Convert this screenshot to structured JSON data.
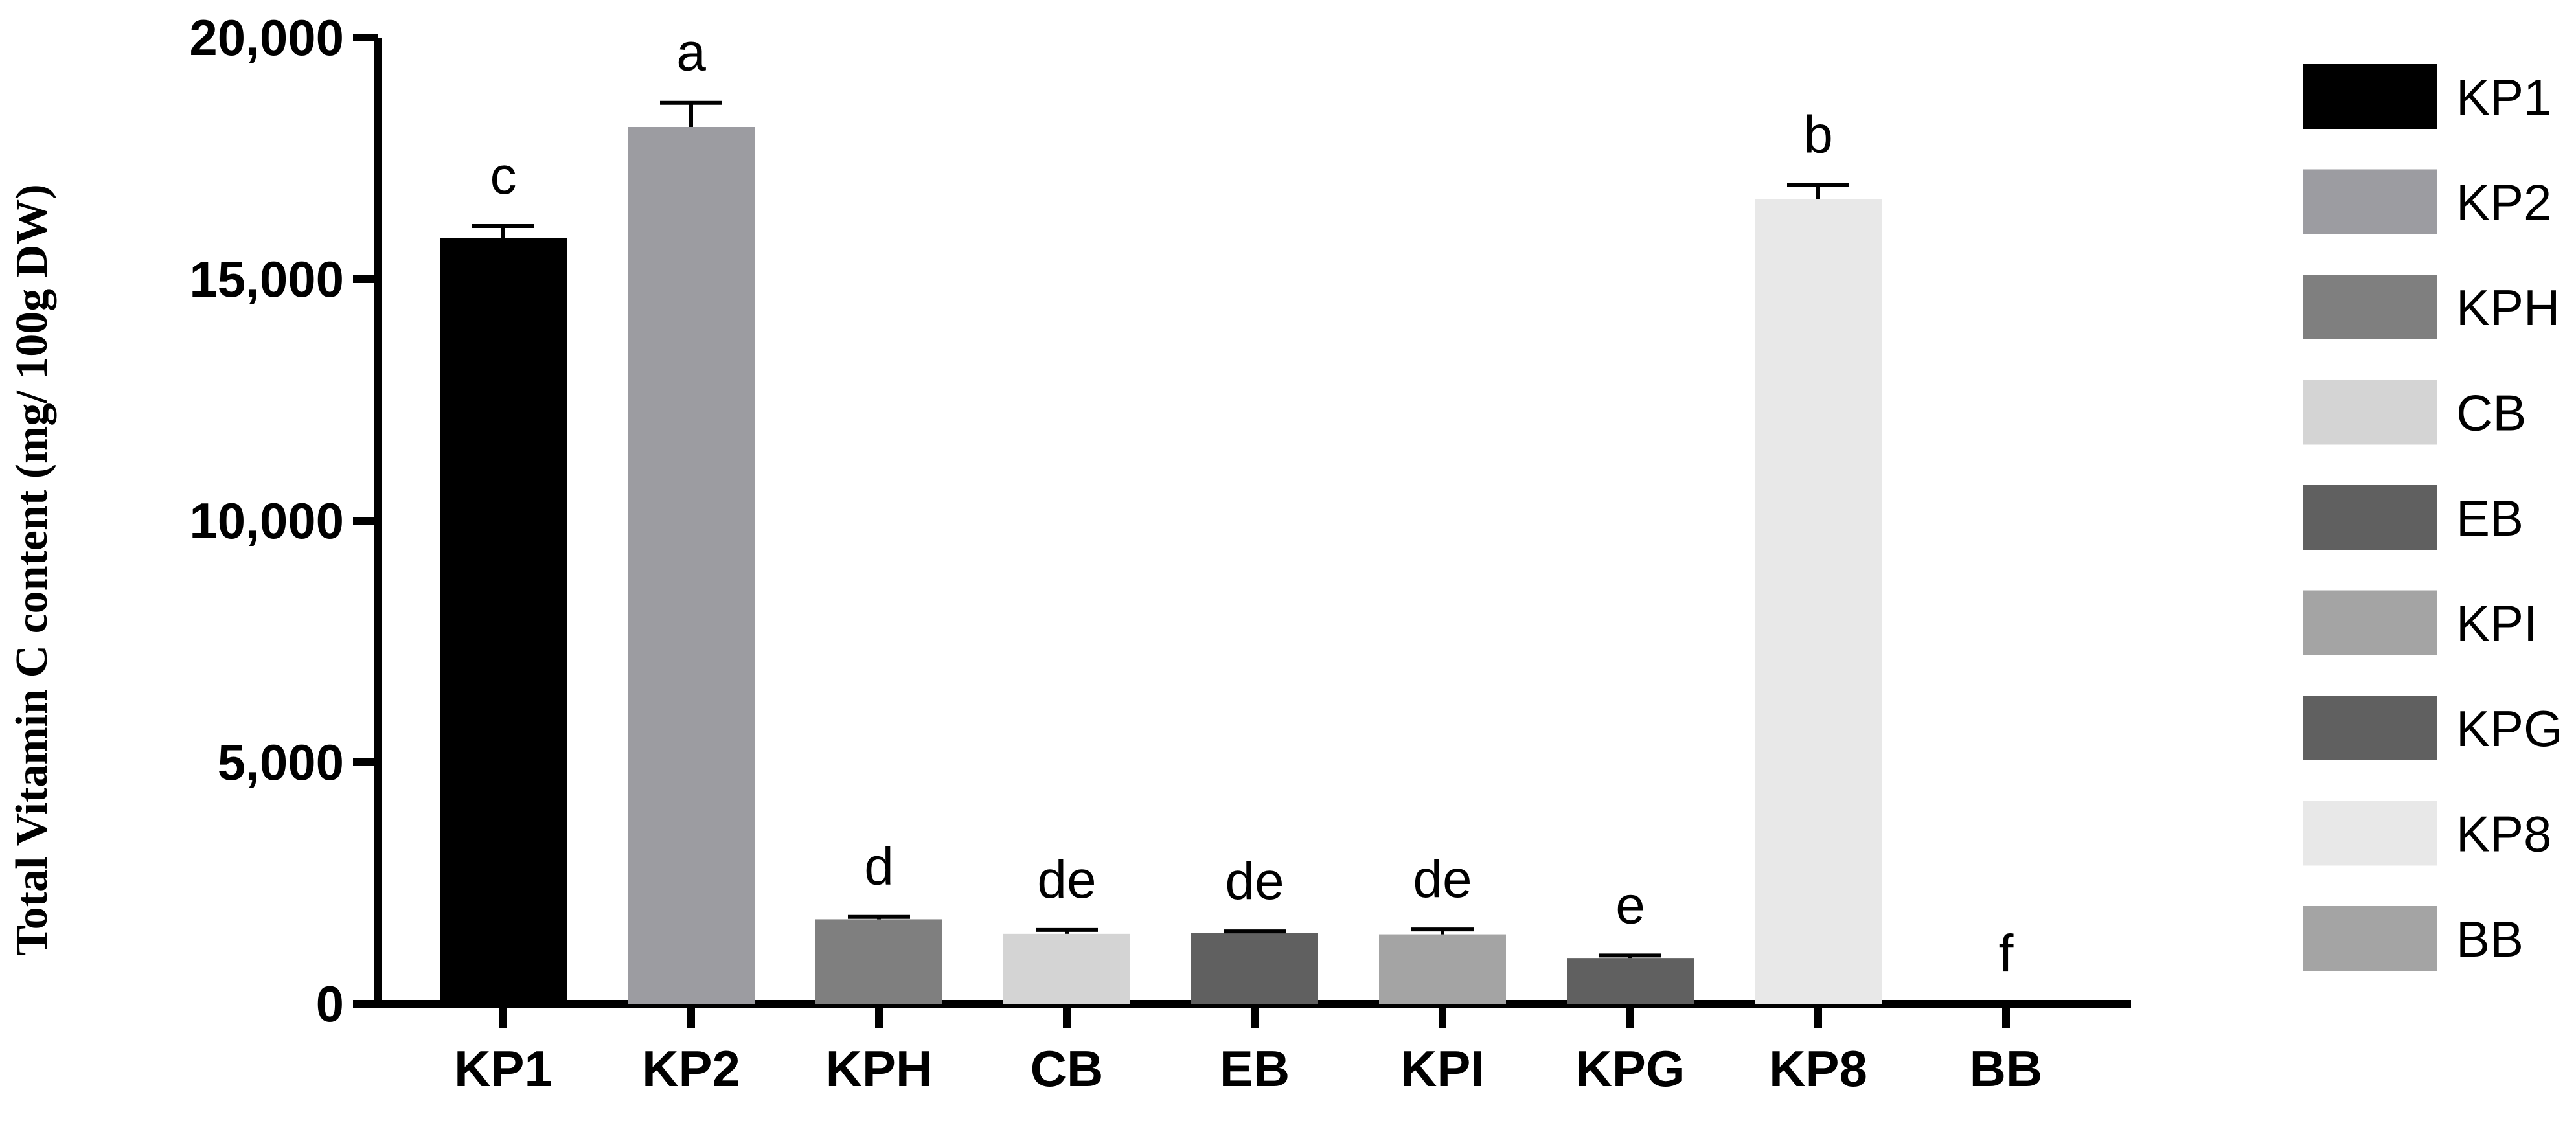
{
  "chart_data": {
    "type": "bar",
    "title": "",
    "xlabel": "",
    "ylabel": "Total Vitamin C content (mg/ 100g DW)",
    "ylim": [
      0,
      20000
    ],
    "yticks": [
      0,
      5000,
      10000,
      15000,
      20000
    ],
    "ytick_labels": [
      "0",
      "5,000",
      "10,000",
      "15,000",
      "20,000"
    ],
    "grid": false,
    "legend_position": "right",
    "categories": [
      "KP1",
      "KP2",
      "KPH",
      "CB",
      "EB",
      "KPI",
      "KPG",
      "KP8",
      "BB"
    ],
    "values": [
      15850,
      18150,
      1750,
      1450,
      1470,
      1440,
      950,
      16650,
      0
    ],
    "errors": [
      250,
      500,
      50,
      80,
      30,
      100,
      50,
      300,
      0
    ],
    "significance": [
      "c",
      "a",
      "d",
      "de",
      "de",
      "de",
      "e",
      "b",
      "f"
    ],
    "colors": [
      "#000000",
      "#9c9ca1",
      "#7f7f7f",
      "#d4d4d4",
      "#606060",
      "#a4a4a4",
      "#606060",
      "#e8e8e8",
      "#a4a4a4"
    ]
  }
}
